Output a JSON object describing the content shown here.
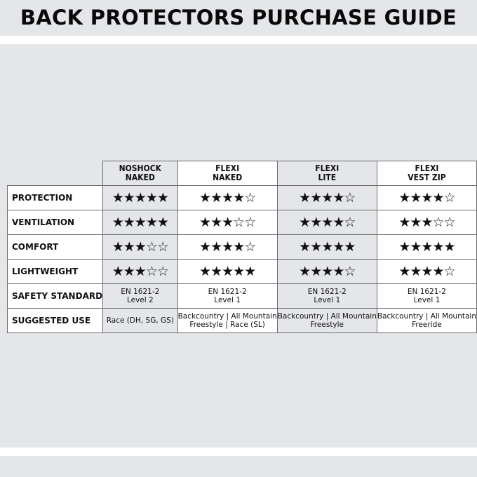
{
  "title": "BACK PROTECTORS PURCHASE GUIDE",
  "columns": [
    {
      "line1": "NOSHOCK",
      "line2": "NAKED"
    },
    {
      "line1": "FLEXI",
      "line2": "NAKED"
    },
    {
      "line1": "FLEXI",
      "line2": "LITE"
    },
    {
      "line1": "FLEXI",
      "line2": "VEST ZIP"
    }
  ],
  "rating_rows": [
    {
      "label": "PROTECTION",
      "ratings": [
        5,
        4,
        4,
        4
      ]
    },
    {
      "label": "VENTILATION",
      "ratings": [
        5,
        3,
        4,
        3
      ]
    },
    {
      "label": "COMFORT",
      "ratings": [
        3,
        4,
        5,
        5
      ]
    },
    {
      "label": "LIGHTWEIGHT",
      "ratings": [
        3,
        5,
        4,
        4
      ]
    }
  ],
  "rating_max": 5,
  "safety": {
    "label": "SAFETY STANDARD",
    "values": [
      {
        "line1": "EN 1621-2",
        "line2": "Level 2"
      },
      {
        "line1": "EN 1621-2",
        "line2": "Level 1"
      },
      {
        "line1": "EN 1621-2",
        "line2": "Level 1"
      },
      {
        "line1": "EN 1621-2",
        "line2": "Level 1"
      }
    ]
  },
  "use": {
    "label": "SUGGESTED USE",
    "values": [
      {
        "line1": "Race (DH, SG, GS)",
        "line2": ""
      },
      {
        "line1": "Backcountry | All Mountain",
        "line2": "Freestyle | Race (SL)"
      },
      {
        "line1": "Backcountry | All Mountain",
        "line2": "Freestyle"
      },
      {
        "line1": "Backcountry | All Mountain",
        "line2": "Freeride"
      }
    ]
  }
}
